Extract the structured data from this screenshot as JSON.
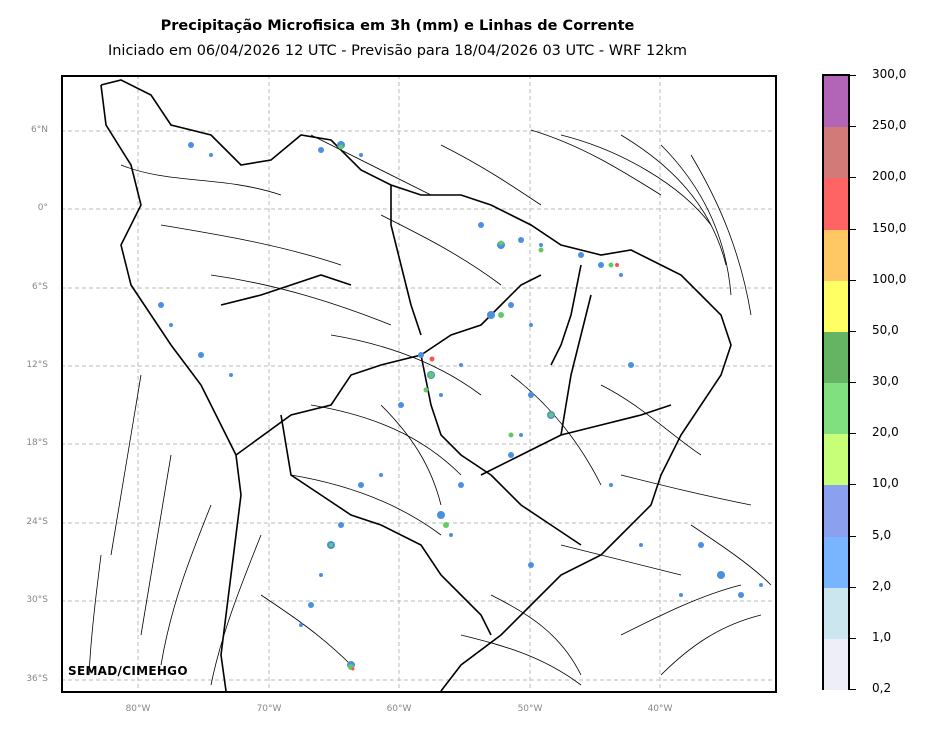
{
  "title": "Precipitação Microfisica em 3h (mm) e Linhas de Corrente",
  "subtitle": "Iniciado em 06/04/2026 12 UTC - Previsão para 18/04/2026 03 UTC - WRF 12km",
  "credit": "SEMAD/CIMEHGO",
  "lat_labels": [
    "6°N",
    "0°",
    "6°S",
    "12°S",
    "18°S",
    "24°S",
    "30°S",
    "36°S"
  ],
  "lon_labels": [
    "80°W",
    "70°W",
    "60°W",
    "50°W",
    "40°W"
  ],
  "colorbar": {
    "labels": [
      "300,0",
      "250,0",
      "200,0",
      "150,0",
      "100,0",
      "50,0",
      "30,0",
      "20,0",
      "10,0",
      "5,0",
      "2,0",
      "1,0",
      "0,2"
    ],
    "colors": [
      "#b264b6",
      "#d27a78",
      "#ff6464",
      "#ffc864",
      "#ffff64",
      "#64b464",
      "#80e080",
      "#c8ff78",
      "#8ca0f0",
      "#78b4ff",
      "#cce6f0",
      "#eeeef8"
    ]
  },
  "colors": {
    "grid": "#bbbbbb",
    "coast": "#000000",
    "rain_light": "#4a90e2",
    "rain_mid": "#64c864",
    "rain_heavy": "#ff5050"
  }
}
